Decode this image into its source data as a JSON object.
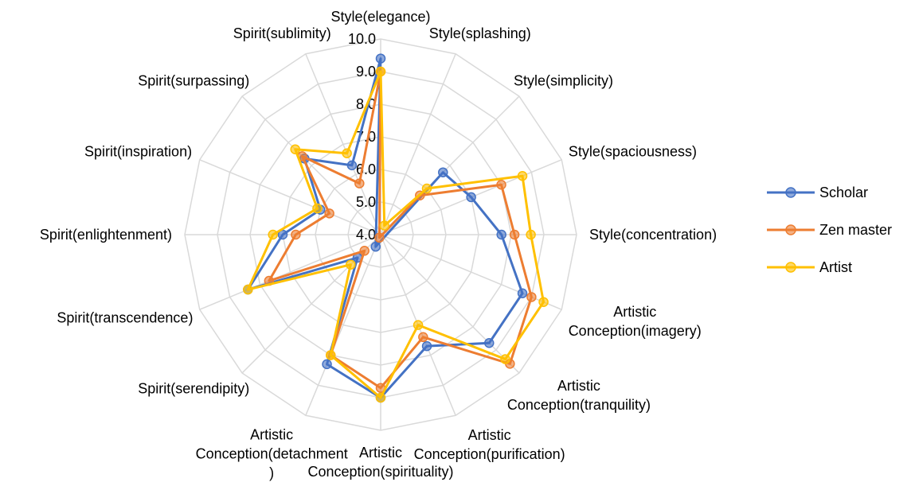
{
  "chart_data": {
    "type": "radar",
    "categories": [
      "Style(elegance)",
      "Style(splashing)",
      "Style(simplicity)",
      "Style(spaciousness)",
      "Style(concentration)",
      "Artistic\nConception(imagery)",
      "Artistic\nConception(tranquility)",
      "Artistic\nConception(purification)",
      "Artistic\nConception(spirituality)",
      "Artistic\nConception(detachment\n)",
      "Spirit(serendipity)",
      "Spirit(transcendence)",
      "Spirit(enlightenment)",
      "Spirit(inspiration)",
      "Spirit(surpassing)",
      "Spirit(sublimity)"
    ],
    "series": [
      {
        "name": "Scholar",
        "color": "#4472c4",
        "values": [
          9.4,
          3.6,
          6.7,
          7.0,
          7.7,
          8.7,
          8.7,
          7.7,
          9.0,
          8.3,
          5.0,
          8.4,
          7.0,
          6.0,
          7.3,
          6.3
        ]
      },
      {
        "name": "Zen master",
        "color": "#ed7d31",
        "values": [
          9.0,
          3.9,
          5.7,
          8.0,
          8.1,
          9.0,
          9.6,
          7.4,
          8.7,
          8.0,
          4.7,
          7.7,
          6.6,
          5.7,
          7.4,
          5.7
        ]
      },
      {
        "name": "Artist",
        "color": "#ffc000",
        "values": [
          9.0,
          4.3,
          6.0,
          8.7,
          8.6,
          9.4,
          9.4,
          7.0,
          9.0,
          8.0,
          5.3,
          8.4,
          7.3,
          6.1,
          7.7,
          6.7
        ]
      }
    ],
    "ylim": [
      4,
      10
    ],
    "yticks": [
      {
        "value": 4,
        "label": "4.0"
      },
      {
        "value": 5,
        "label": "5.0"
      },
      {
        "value": 6,
        "label": "6.0"
      },
      {
        "value": 7,
        "label": "7.0"
      },
      {
        "value": 8,
        "label": "8.0"
      },
      {
        "value": 9,
        "label": "9.0"
      },
      {
        "value": 10,
        "label": "10.0"
      }
    ],
    "grid": true,
    "legend": "right"
  }
}
